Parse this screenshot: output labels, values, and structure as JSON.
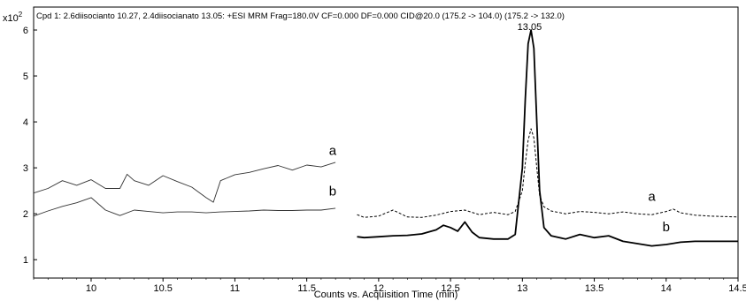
{
  "chart_data": {
    "type": "line",
    "title": "Cpd 1: 2.6diisocianto 10.27, 2.4diisocianato 13.05: +ESI MRM Frag=180.0V CF=0.000 DF=0.000 CID@20.0 (175.2 -> 104.0) (175.2 -> 132.0)",
    "xlabel": "Counts vs. Acquisition Time (min)",
    "y_multiplier": "x10",
    "y_multiplier_exp": "2",
    "xlim": [
      9.6,
      14.5
    ],
    "ylim": [
      0.6,
      6.5
    ],
    "xticks": [
      10,
      10.5,
      11,
      11.5,
      12,
      12.5,
      13,
      13.5,
      14,
      14.5
    ],
    "yticks": [
      1,
      2,
      3,
      4,
      5,
      6
    ],
    "grid": false,
    "annotations": [
      {
        "text": "13.05",
        "x": 13.05,
        "y": 6.0
      },
      {
        "text": "a",
        "x": 11.68,
        "y": 3.28
      },
      {
        "text": "b",
        "x": 11.68,
        "y": 2.4
      },
      {
        "text": "a",
        "x": 13.9,
        "y": 2.28
      },
      {
        "text": "b",
        "x": 14.0,
        "y": 1.62
      }
    ],
    "series": [
      {
        "name": "a",
        "segment": "left",
        "style": "thin",
        "x": [
          9.6,
          9.7,
          9.8,
          9.9,
          10.0,
          10.1,
          10.2,
          10.25,
          10.3,
          10.4,
          10.5,
          10.6,
          10.7,
          10.8,
          10.85,
          10.9,
          11.0,
          11.1,
          11.2,
          11.3,
          11.4,
          11.5,
          11.6,
          11.7
        ],
        "y": [
          2.45,
          2.55,
          2.72,
          2.62,
          2.74,
          2.55,
          2.55,
          2.86,
          2.72,
          2.62,
          2.83,
          2.7,
          2.58,
          2.35,
          2.25,
          2.72,
          2.85,
          2.9,
          2.98,
          3.05,
          2.95,
          3.06,
          3.02,
          3.12
        ]
      },
      {
        "name": "b",
        "segment": "left",
        "style": "thin",
        "x": [
          9.6,
          9.7,
          9.8,
          9.9,
          10.0,
          10.1,
          10.2,
          10.3,
          10.4,
          10.5,
          10.6,
          10.7,
          10.8,
          10.9,
          11.0,
          11.1,
          11.2,
          11.3,
          11.4,
          11.5,
          11.6,
          11.7
        ],
        "y": [
          1.95,
          2.06,
          2.16,
          2.24,
          2.35,
          2.08,
          1.96,
          2.08,
          2.05,
          2.02,
          2.04,
          2.04,
          2.02,
          2.04,
          2.05,
          2.06,
          2.08,
          2.07,
          2.07,
          2.08,
          2.08,
          2.12
        ]
      },
      {
        "name": "a",
        "segment": "right",
        "style": "dashed",
        "x": [
          11.85,
          11.9,
          12.0,
          12.1,
          12.2,
          12.3,
          12.4,
          12.5,
          12.6,
          12.7,
          12.8,
          12.9,
          12.95,
          13.0,
          13.02,
          13.04,
          13.06,
          13.08,
          13.1,
          13.12,
          13.15,
          13.2,
          13.3,
          13.4,
          13.5,
          13.6,
          13.7,
          13.8,
          13.9,
          14.0,
          14.05,
          14.1,
          14.2,
          14.3,
          14.4,
          14.5
        ],
        "y": [
          1.98,
          1.92,
          1.95,
          2.08,
          1.93,
          1.92,
          1.97,
          2.05,
          2.08,
          1.98,
          2.03,
          1.98,
          2.05,
          2.5,
          3.1,
          3.6,
          3.85,
          3.65,
          3.0,
          2.4,
          2.15,
          2.06,
          2.0,
          2.05,
          2.03,
          2.0,
          2.04,
          2.0,
          1.98,
          2.05,
          2.1,
          2.02,
          1.97,
          1.95,
          1.94,
          1.93
        ]
      },
      {
        "name": "b",
        "segment": "right",
        "style": "solid",
        "x": [
          11.85,
          11.9,
          12.0,
          12.1,
          12.2,
          12.3,
          12.4,
          12.45,
          12.5,
          12.55,
          12.6,
          12.65,
          12.7,
          12.8,
          12.9,
          12.95,
          13.0,
          13.02,
          13.04,
          13.06,
          13.08,
          13.1,
          13.12,
          13.15,
          13.2,
          13.3,
          13.4,
          13.5,
          13.6,
          13.7,
          13.8,
          13.9,
          14.0,
          14.1,
          14.2,
          14.3,
          14.4,
          14.5
        ],
        "y": [
          1.5,
          1.48,
          1.5,
          1.52,
          1.53,
          1.56,
          1.65,
          1.75,
          1.7,
          1.62,
          1.82,
          1.6,
          1.48,
          1.45,
          1.45,
          1.55,
          3.0,
          4.5,
          5.7,
          6.0,
          5.6,
          4.0,
          2.5,
          1.7,
          1.52,
          1.45,
          1.55,
          1.48,
          1.52,
          1.4,
          1.35,
          1.3,
          1.33,
          1.38,
          1.4,
          1.4,
          1.4,
          1.4
        ]
      }
    ]
  }
}
